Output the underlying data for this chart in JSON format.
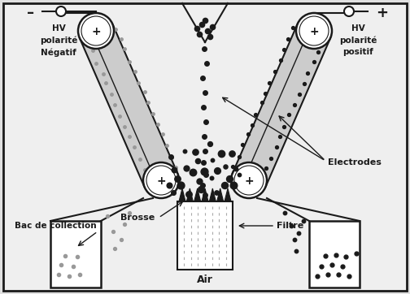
{
  "bg_color": "#f0f0f0",
  "line_color": "#1a1a1a",
  "dot_dark": "#1a1a1a",
  "dot_light": "#999999",
  "labels": {
    "hv_neg": "HV\npolarité\nNégatif",
    "hv_pos": "HV\npolarité\npositif",
    "electrodes": "Electrodes",
    "brosse": "Brosse",
    "filtre": "Filtre",
    "bac": "Bac de collection",
    "air": "Air"
  },
  "figsize": [
    5.04,
    3.62
  ],
  "dpi": 100
}
